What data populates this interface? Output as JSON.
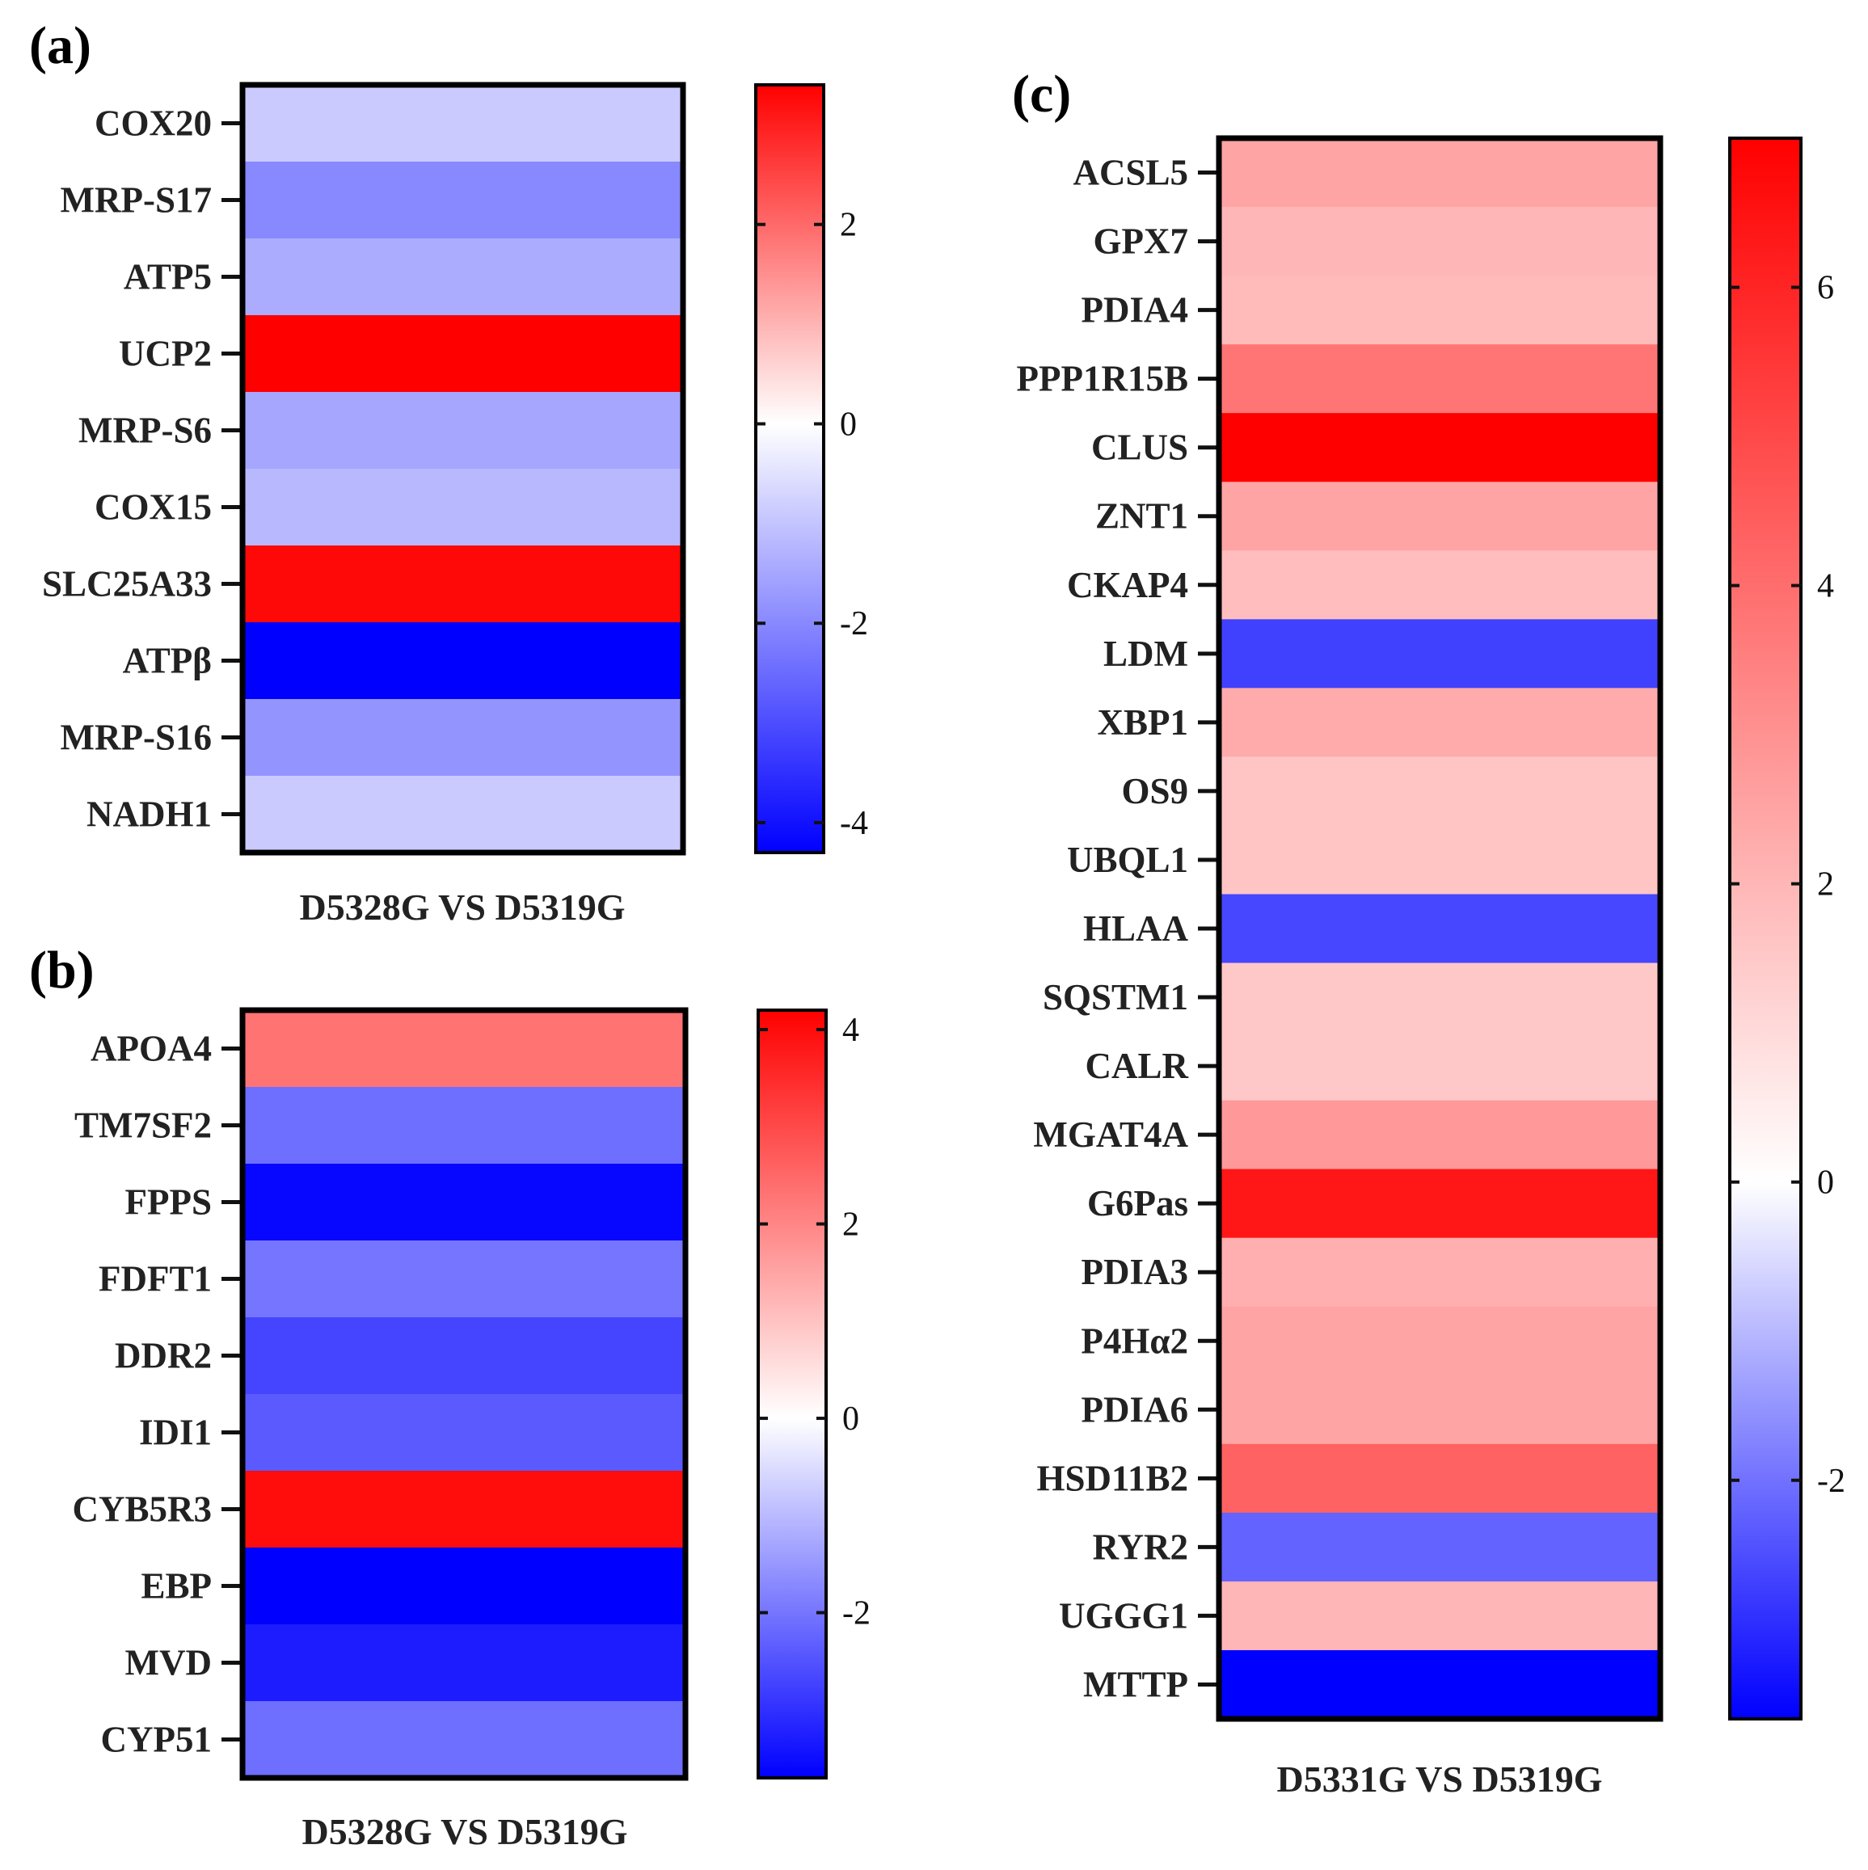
{
  "chart_data": [
    {
      "id": "a",
      "type": "heatmap",
      "panel_label": "(a)",
      "xlabel": "D5328G VS D5319G",
      "rows": [
        "COX20",
        "MRP-S17",
        "ATP5",
        "UCP2",
        "MRP-S6",
        "COX15",
        "SLC25A33",
        "ATPβ",
        "MRP-S16",
        "NADH1"
      ],
      "values": [
        -0.9,
        -2.0,
        -1.4,
        3.4,
        -1.5,
        -1.2,
        3.3,
        -4.3,
        -1.8,
        -0.9
      ],
      "color_range": [
        -4.3,
        3.4
      ],
      "colorbar_ticks": [
        2,
        0,
        -2,
        -4
      ],
      "colorbar_tick_labels": [
        "2",
        "0",
        "-2",
        "-4"
      ]
    },
    {
      "id": "b",
      "type": "heatmap",
      "panel_label": "(b)",
      "xlabel": "D5328G VS D5319G",
      "rows": [
        "APOA4",
        "TM7SF2",
        "FPPS",
        "FDFT1",
        "DDR2",
        "IDI1",
        "CYB5R3",
        "EBP",
        "MVD",
        "CYP51"
      ],
      "values": [
        2.3,
        -2.1,
        -3.6,
        -2.0,
        -2.7,
        -2.4,
        4.0,
        -3.7,
        -3.3,
        -2.1
      ],
      "color_range": [
        -3.7,
        4.2
      ],
      "colorbar_ticks": [
        4,
        2,
        0,
        -2
      ],
      "colorbar_tick_labels": [
        "4",
        "2",
        "0",
        "-2"
      ]
    },
    {
      "id": "c",
      "type": "heatmap",
      "panel_label": "(c)",
      "xlabel": "D5331G VS D5319G",
      "rows": [
        "ACSL5",
        "GPX7",
        "PDIA4",
        "PPP1R15B",
        "CLUS",
        "ZNT1",
        "CKAP4",
        "LDM",
        "XBP1",
        "OS9",
        "UBQL1",
        "HLAA",
        "SQSTM1",
        "CALR",
        "MGAT4A",
        "G6Pas",
        "PDIA3",
        "P4Hα2",
        "PDIA6",
        "HSD11B2",
        "RYR2",
        "UGGG1",
        "MTTP"
      ],
      "values": [
        2.5,
        2.0,
        1.9,
        3.8,
        7.0,
        2.5,
        1.8,
        -2.7,
        2.3,
        1.6,
        1.6,
        -2.6,
        1.5,
        1.5,
        2.8,
        6.4,
        2.2,
        2.5,
        2.5,
        4.3,
        -2.2,
        2.0,
        -3.6
      ],
      "color_range": [
        -3.6,
        7.0
      ],
      "colorbar_ticks": [
        6,
        4,
        2,
        0,
        -2
      ],
      "colorbar_tick_labels": [
        "6",
        "4",
        "2",
        "0",
        "-2"
      ]
    }
  ]
}
